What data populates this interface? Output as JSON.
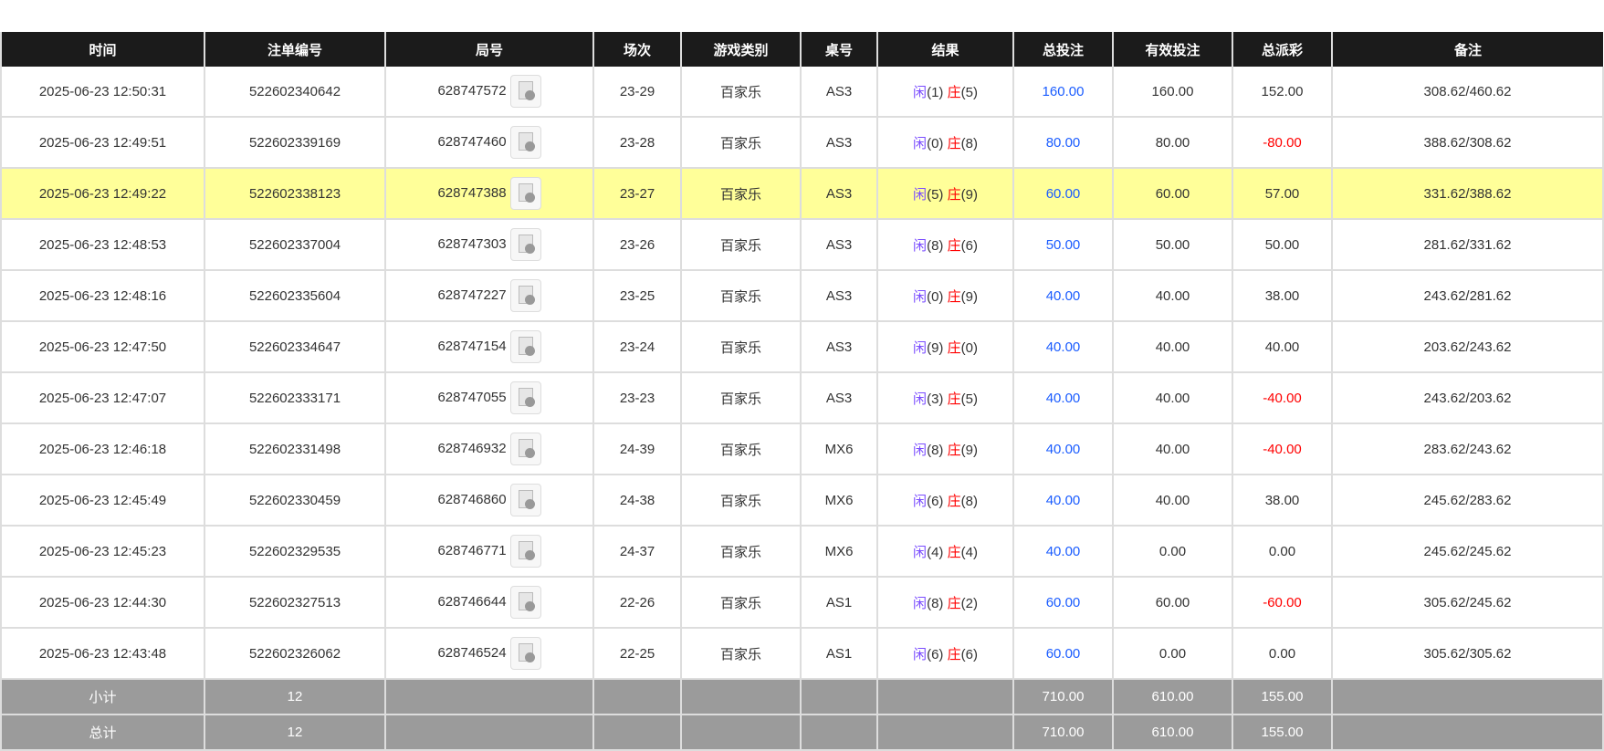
{
  "headers": [
    "时间",
    "注单编号",
    "局号",
    "场次",
    "游戏类别",
    "桌号",
    "结果",
    "总投注",
    "有效投注",
    "总派彩",
    "备注"
  ],
  "rows": [
    [
      "2025-06-23 12:50:31",
      "522602340642",
      "628747572",
      "23-29",
      "百家乐",
      "AS3",
      "1",
      "5",
      "160.00",
      "160.00",
      "152.00",
      "308.62/460.62"
    ],
    [
      "2025-06-23 12:49:51",
      "522602339169",
      "628747460",
      "23-28",
      "百家乐",
      "AS3",
      "0",
      "8",
      "80.00",
      "80.00",
      "-80.00",
      "388.62/308.62"
    ],
    [
      "2025-06-23 12:49:22",
      "522602338123",
      "628747388",
      "23-27",
      "百家乐",
      "AS3",
      "5",
      "9",
      "60.00",
      "60.00",
      "57.00",
      "331.62/388.62"
    ],
    [
      "2025-06-23 12:48:53",
      "522602337004",
      "628747303",
      "23-26",
      "百家乐",
      "AS3",
      "8",
      "6",
      "50.00",
      "50.00",
      "50.00",
      "281.62/331.62"
    ],
    [
      "2025-06-23 12:48:16",
      "522602335604",
      "628747227",
      "23-25",
      "百家乐",
      "AS3",
      "0",
      "9",
      "40.00",
      "40.00",
      "38.00",
      "243.62/281.62"
    ],
    [
      "2025-06-23 12:47:50",
      "522602334647",
      "628747154",
      "23-24",
      "百家乐",
      "AS3",
      "9",
      "0",
      "40.00",
      "40.00",
      "40.00",
      "203.62/243.62"
    ],
    [
      "2025-06-23 12:47:07",
      "522602333171",
      "628747055",
      "23-23",
      "百家乐",
      "AS3",
      "3",
      "5",
      "40.00",
      "40.00",
      "-40.00",
      "243.62/203.62"
    ],
    [
      "2025-06-23 12:46:18",
      "522602331498",
      "628746932",
      "24-39",
      "百家乐",
      "MX6",
      "8",
      "9",
      "40.00",
      "40.00",
      "-40.00",
      "283.62/243.62"
    ],
    [
      "2025-06-23 12:45:49",
      "522602330459",
      "628746860",
      "24-38",
      "百家乐",
      "MX6",
      "6",
      "8",
      "40.00",
      "40.00",
      "38.00",
      "245.62/283.62"
    ],
    [
      "2025-06-23 12:45:23",
      "522602329535",
      "628746771",
      "24-37",
      "百家乐",
      "MX6",
      "4",
      "4",
      "40.00",
      "0.00",
      "0.00",
      "245.62/245.62"
    ],
    [
      "2025-06-23 12:44:30",
      "522602327513",
      "628746644",
      "22-26",
      "百家乐",
      "AS1",
      "8",
      "2",
      "60.00",
      "60.00",
      "-60.00",
      "305.62/245.62"
    ],
    [
      "2025-06-23 12:43:48",
      "522602326062",
      "628746524",
      "22-25",
      "百家乐",
      "AS1",
      "6",
      "6",
      "60.00",
      "0.00",
      "0.00",
      "305.62/305.62"
    ]
  ],
  "result_labels": {
    "player": "闲",
    "banker": "庄"
  },
  "highlighted_row": 2,
  "subtotal": {
    "label": "小计",
    "count": "12",
    "bet": "710.00",
    "valid": "610.00",
    "payout": "155.00"
  },
  "total": {
    "label": "总计",
    "count": "12",
    "bet": "710.00",
    "valid": "610.00",
    "payout": "155.00"
  },
  "colors": {
    "header": "#1b1b1b",
    "highlight": "#ffff99",
    "summary": "#9b9b9b",
    "bet": "#1a5cff",
    "negative": "#ff0000"
  }
}
